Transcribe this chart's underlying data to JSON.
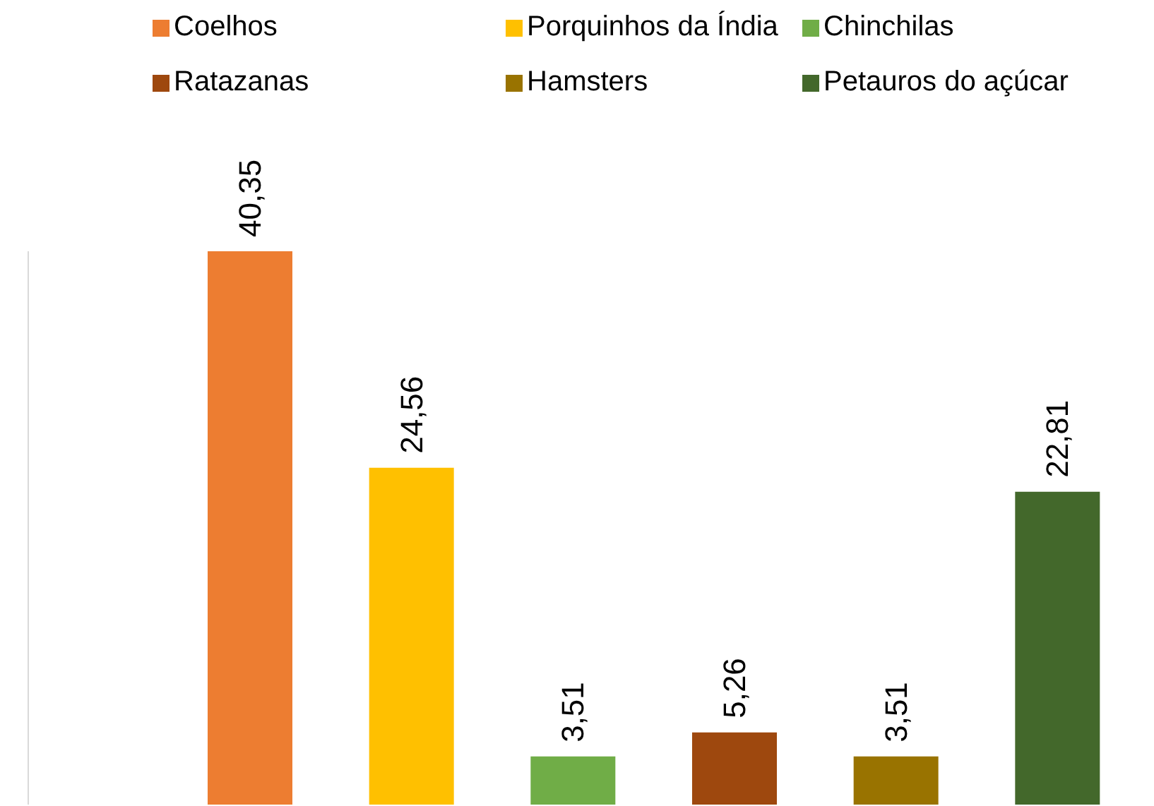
{
  "chart_data": {
    "type": "bar",
    "stacked": true,
    "categories": [
      null,
      null,
      null,
      null,
      null,
      null
    ],
    "series": [
      {
        "name": "Coelhos",
        "color": "#ed7d31",
        "values": [
          40.35,
          null,
          null,
          null,
          null,
          null
        ],
        "value_labels": [
          "40,35",
          null,
          null,
          null,
          null,
          null
        ]
      },
      {
        "name": "Porquinhos da Índia",
        "color": "#ffc000",
        "values": [
          null,
          24.56,
          null,
          null,
          null,
          null
        ],
        "value_labels": [
          null,
          "24,56",
          null,
          null,
          null,
          null
        ]
      },
      {
        "name": "Chinchilas",
        "color": "#70ad47",
        "values": [
          null,
          null,
          3.51,
          null,
          null,
          null
        ],
        "value_labels": [
          null,
          null,
          "3,51",
          null,
          null,
          null
        ]
      },
      {
        "name": "Ratazanas",
        "color": "#9e480e",
        "values": [
          null,
          null,
          null,
          5.26,
          null,
          null
        ],
        "value_labels": [
          null,
          null,
          null,
          "5,26",
          null,
          null
        ]
      },
      {
        "name": "Hamsters",
        "color": "#997300",
        "values": [
          null,
          null,
          null,
          null,
          3.51,
          null
        ],
        "value_labels": [
          null,
          null,
          null,
          null,
          "3,51",
          null
        ]
      },
      {
        "name": "Petauros do açúcar",
        "color": "#43682b",
        "values": [
          null,
          null,
          null,
          null,
          null,
          22.81
        ],
        "value_labels": [
          null,
          null,
          null,
          null,
          null,
          "22,81"
        ]
      }
    ],
    "tick_labels": false,
    "grid": false,
    "legend": "top"
  }
}
